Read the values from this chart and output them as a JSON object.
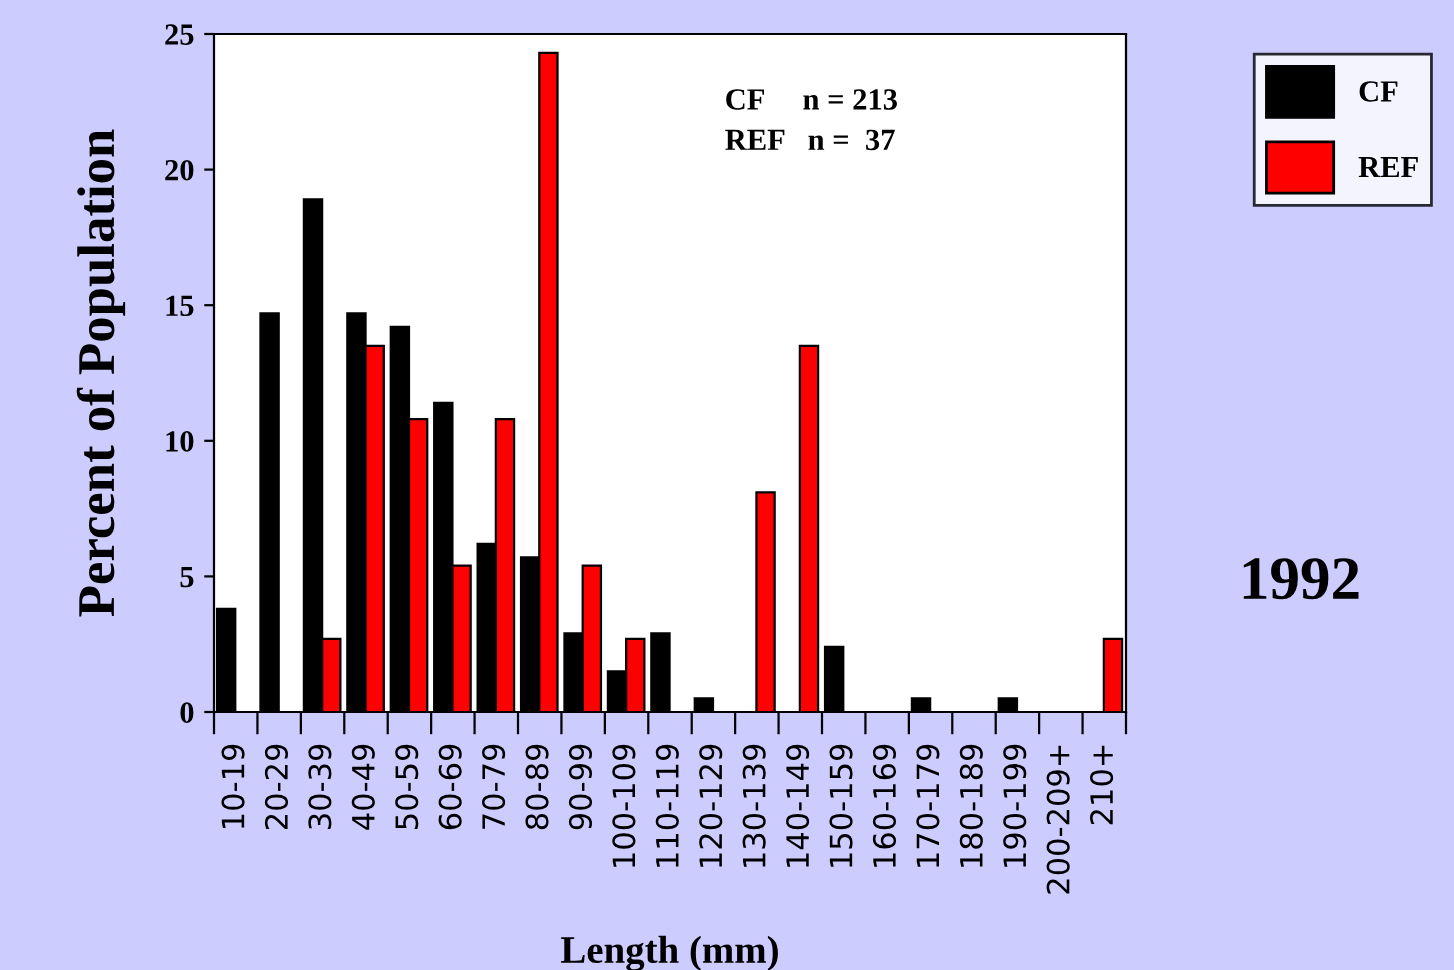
{
  "chart_data": {
    "type": "bar",
    "xlabel": "Length (mm)",
    "ylabel": "Percent of Population",
    "categories": [
      "10-19",
      "20-29",
      "30-39",
      "40-49",
      "50-59",
      "60-69",
      "70-79",
      "80-89",
      "90-99",
      "100-109",
      "110-119",
      "120-129",
      "130-139",
      "140-149",
      "150-159",
      "160-169",
      "170-179",
      "180-189",
      "190-199",
      "200-209+",
      "210+"
    ],
    "series": [
      {
        "name": "CF",
        "color": "#000000",
        "values": [
          3.8,
          14.7,
          18.9,
          14.7,
          14.2,
          11.4,
          6.2,
          5.7,
          2.9,
          1.5,
          2.9,
          0.5,
          0,
          0,
          2.4,
          0,
          0.5,
          0,
          0.5,
          0,
          0
        ]
      },
      {
        "name": "REF",
        "color": "#ff0000",
        "values": [
          0,
          0,
          2.7,
          13.5,
          10.8,
          5.4,
          10.8,
          24.3,
          5.4,
          2.7,
          0,
          0,
          8.1,
          13.5,
          0,
          0,
          0,
          0,
          0,
          0,
          2.7
        ]
      }
    ],
    "ylim": [
      0,
      25
    ],
    "yticks": [
      0,
      5,
      10,
      15,
      20,
      25
    ],
    "grid": false,
    "legend": "top right",
    "annotations": [
      "CF     n = 213\nREF   n =  37",
      "1992"
    ]
  }
}
